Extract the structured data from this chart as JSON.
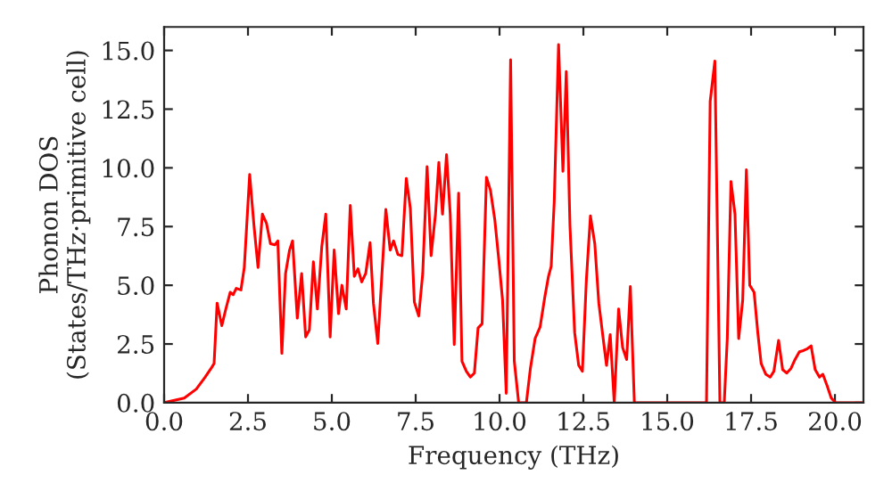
{
  "chart_data": {
    "type": "line",
    "xlabel": "Frequency (THz)",
    "ylabel": "Phonon DOS\n(States/THz·primitive cell)",
    "series": [
      {
        "color": "#ff0000",
        "x": [
          0.0,
          0.6,
          0.96,
          1.22,
          1.4,
          1.49,
          1.58,
          1.72,
          1.84,
          1.97,
          2.06,
          2.15,
          2.29,
          2.39,
          2.55,
          2.68,
          2.8,
          2.93,
          3.05,
          3.17,
          3.3,
          3.39,
          3.51,
          3.62,
          3.74,
          3.83,
          3.97,
          4.1,
          4.22,
          4.33,
          4.45,
          4.57,
          4.7,
          4.82,
          4.95,
          5.07,
          5.2,
          5.3,
          5.43,
          5.55,
          5.67,
          5.78,
          5.89,
          6.01,
          6.14,
          6.24,
          6.37,
          6.49,
          6.61,
          6.74,
          6.84,
          6.97,
          7.09,
          7.22,
          7.34,
          7.46,
          7.59,
          7.71,
          7.84,
          7.96,
          8.09,
          8.19,
          8.3,
          8.42,
          8.53,
          8.65,
          8.78,
          8.88,
          9.01,
          9.13,
          9.25,
          9.36,
          9.48,
          9.61,
          9.73,
          9.86,
          9.98,
          10.09,
          10.2,
          10.33,
          10.44,
          10.57,
          10.8,
          10.92,
          11.06,
          11.21,
          11.35,
          11.46,
          11.54,
          11.63,
          11.76,
          11.89,
          11.99,
          12.1,
          12.24,
          12.36,
          12.47,
          12.59,
          12.71,
          12.84,
          12.96,
          13.09,
          13.19,
          13.3,
          13.42,
          13.55,
          13.67,
          13.79,
          13.9,
          14.02,
          16.17,
          16.28,
          16.42,
          16.57,
          16.7,
          16.79,
          16.9,
          17.02,
          17.13,
          17.25,
          17.36,
          17.46,
          17.59,
          17.7,
          17.8,
          17.94,
          18.07,
          18.18,
          18.32,
          18.44,
          18.56,
          18.69,
          18.81,
          18.94,
          19.06,
          19.18,
          19.29,
          19.41,
          19.54,
          19.64,
          19.77,
          19.89,
          20.02,
          20.8
        ],
        "values": [
          0.0,
          0.2,
          0.58,
          1.08,
          1.46,
          1.67,
          4.24,
          3.28,
          3.99,
          4.7,
          4.6,
          4.87,
          4.8,
          5.76,
          9.72,
          7.52,
          5.76,
          8.03,
          7.65,
          6.77,
          6.72,
          6.89,
          2.1,
          5.5,
          6.5,
          6.89,
          3.6,
          5.5,
          2.8,
          3.1,
          6.0,
          3.99,
          6.64,
          8.03,
          2.8,
          6.5,
          3.79,
          5.0,
          3.99,
          8.4,
          5.38,
          5.7,
          5.14,
          5.5,
          6.82,
          4.24,
          2.52,
          5.38,
          8.23,
          6.5,
          6.89,
          6.31,
          6.26,
          9.55,
          8.28,
          4.29,
          3.69,
          5.5,
          10.05,
          6.26,
          8.03,
          10.23,
          8.03,
          10.56,
          8.03,
          2.47,
          8.92,
          1.77,
          1.34,
          1.09,
          1.26,
          3.18,
          3.36,
          9.6,
          9.04,
          7.78,
          6.06,
          4.37,
          0.4,
          14.6,
          1.77,
          0.0,
          0.0,
          1.46,
          2.73,
          3.23,
          4.5,
          5.38,
          5.81,
          8.54,
          15.25,
          9.85,
          14.1,
          7.53,
          2.98,
          1.59,
          1.34,
          5.25,
          7.95,
          6.77,
          4.24,
          2.73,
          1.59,
          2.9,
          0.0,
          3.99,
          2.35,
          1.84,
          4.95,
          0.0,
          0.0,
          12.83,
          14.55,
          0.0,
          0.0,
          2.73,
          9.42,
          8.03,
          2.73,
          4.37,
          9.92,
          5.0,
          4.7,
          2.98,
          1.67,
          1.21,
          1.09,
          1.34,
          2.65,
          1.41,
          1.26,
          1.46,
          1.84,
          2.17,
          2.22,
          2.3,
          2.42,
          1.41,
          1.09,
          1.21,
          0.71,
          0.2,
          0.0,
          0.0
        ]
      }
    ],
    "xlim": [
      0,
      20.85
    ],
    "ylim": [
      0,
      16
    ],
    "xticks": [
      {
        "value": 0,
        "label": "0.0"
      },
      {
        "value": 2.5,
        "label": "2.5"
      },
      {
        "value": 5,
        "label": "5.0"
      },
      {
        "value": 7.5,
        "label": "7.5"
      },
      {
        "value": 10,
        "label": "10.0"
      },
      {
        "value": 12.5,
        "label": "12.5"
      },
      {
        "value": 15,
        "label": "15.0"
      },
      {
        "value": 17.5,
        "label": "17.5"
      },
      {
        "value": 20,
        "label": "20.0"
      }
    ],
    "yticks": [
      {
        "value": 0,
        "label": "0.0"
      },
      {
        "value": 2.5,
        "label": "2.5"
      },
      {
        "value": 5,
        "label": "5.0"
      },
      {
        "value": 7.5,
        "label": "7.5"
      },
      {
        "value": 10,
        "label": "10.0"
      },
      {
        "value": 12.5,
        "label": "12.5"
      },
      {
        "value": 15,
        "label": "15.0"
      }
    ],
    "grid": false
  }
}
